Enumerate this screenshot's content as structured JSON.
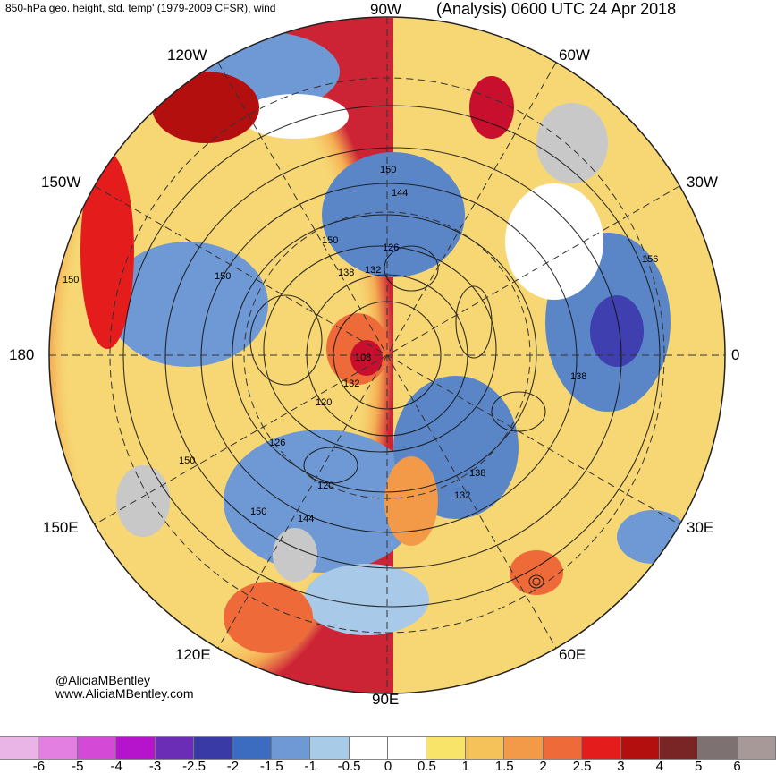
{
  "header": {
    "left_title": "850-hPa geo. height, std. temp' (1979-2009 CFSR), wind",
    "right_title": "(Analysis) 0600 UTC 24 Apr 2018"
  },
  "map": {
    "projection": "north-polar-stereographic",
    "longitude_labels": [
      "90W",
      "60W",
      "30W",
      "0",
      "30E",
      "60E",
      "90E",
      "120E",
      "150E",
      "180",
      "150W",
      "120W"
    ],
    "contour_labels": [
      "150",
      "144",
      "126",
      "132",
      "138",
      "150",
      "150",
      "150",
      "108",
      "132",
      "120",
      "126",
      "150",
      "120",
      "150",
      "144",
      "138",
      "132",
      "156",
      "138"
    ],
    "colors": {
      "warm_strong": "#c8102e",
      "warm": "#f08a3c",
      "warm_light": "#f7c96a",
      "neutral": "#ffffff",
      "cool_light": "#a9c9e8",
      "cool": "#5a86c8",
      "cool_strong": "#3f3fb0",
      "land_gray": "#c8c8c8"
    }
  },
  "credits": {
    "handle": "@AliciaMBentley",
    "website": "www.AliciaMBentley.com"
  },
  "colorbar": {
    "colors": [
      "#e8b5e6",
      "#e27fe0",
      "#d44ad6",
      "#b513cc",
      "#6b2db6",
      "#3a3aa6",
      "#3b6cc0",
      "#6f99d4",
      "#a8cbe8",
      "#ffffff",
      "#ffffff",
      "#f9e46a",
      "#f5c25a",
      "#f29a48",
      "#ee6a38",
      "#e51c1c",
      "#b40f0f",
      "#7a2525",
      "#7d7171",
      "#a89999"
    ],
    "ticks": [
      "-6",
      "-5",
      "-4",
      "-3",
      "-2.5",
      "-2",
      "-1.5",
      "-1",
      "-0.5",
      "0",
      "0.5",
      "1",
      "1.5",
      "2",
      "2.5",
      "3",
      "4",
      "5",
      "6"
    ]
  }
}
